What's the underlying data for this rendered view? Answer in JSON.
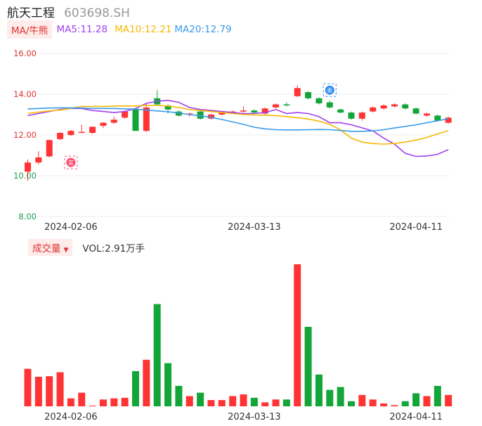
{
  "header": {
    "name": "航天工程",
    "code": "603698.SH"
  },
  "ma": {
    "tag": "MA/牛熊",
    "ma5": "MA5:11.28",
    "ma10": "MA10:12.21",
    "ma20": "MA20:12.79"
  },
  "volume": {
    "tag": "成交量",
    "value": "VOL:2.91万手"
  },
  "markers": {
    "buy": "买",
    "sell": "卖"
  },
  "colors": {
    "up": "#ff3333",
    "down": "#13a538",
    "ma5": "#a040f0",
    "ma10": "#f5b800",
    "ma20": "#3a9ae8"
  },
  "chart_data": {
    "type": "candlestick",
    "y_ticks": [
      "16.00",
      "14.00",
      "12.00",
      "10.00",
      "8.00"
    ],
    "ylim": [
      8,
      16
    ],
    "x_ticks": [
      {
        "label": "2024-02-06",
        "index": 4
      },
      {
        "label": "2024-03-13",
        "index": 21
      },
      {
        "label": "2024-04-11",
        "index": 36
      }
    ],
    "candles": [
      {
        "o": 10.2,
        "c": 10.65,
        "h": 10.8,
        "l": 9.75
      },
      {
        "o": 10.65,
        "c": 10.9,
        "h": 11.2,
        "l": 10.55
      },
      {
        "o": 10.95,
        "c": 11.75,
        "h": 11.78,
        "l": 10.9
      },
      {
        "o": 11.8,
        "c": 12.1,
        "h": 12.15,
        "l": 11.75
      },
      {
        "o": 12.0,
        "c": 12.2,
        "h": 12.25,
        "l": 11.95
      },
      {
        "o": 12.1,
        "c": 12.15,
        "h": 12.5,
        "l": 12.1
      },
      {
        "o": 12.1,
        "c": 12.4,
        "h": 12.42,
        "l": 12.05
      },
      {
        "o": 12.45,
        "c": 12.6,
        "h": 12.62,
        "l": 12.35
      },
      {
        "o": 12.6,
        "c": 12.75,
        "h": 12.9,
        "l": 12.55
      },
      {
        "o": 12.85,
        "c": 13.15,
        "h": 13.2,
        "l": 12.8
      },
      {
        "o": 13.25,
        "c": 12.2,
        "h": 13.3,
        "l": 12.2
      },
      {
        "o": 12.2,
        "c": 13.35,
        "h": 13.55,
        "l": 12.15
      },
      {
        "o": 13.8,
        "c": 13.5,
        "h": 14.2,
        "l": 13.45
      },
      {
        "o": 13.45,
        "c": 13.25,
        "h": 13.5,
        "l": 13.05
      },
      {
        "o": 13.15,
        "c": 12.95,
        "h": 13.2,
        "l": 12.9
      },
      {
        "o": 13.0,
        "c": 13.05,
        "h": 13.1,
        "l": 12.9
      },
      {
        "o": 13.15,
        "c": 12.8,
        "h": 13.2,
        "l": 12.75
      },
      {
        "o": 12.8,
        "c": 13.0,
        "h": 13.05,
        "l": 12.75
      },
      {
        "o": 13.0,
        "c": 13.1,
        "h": 13.15,
        "l": 12.95
      },
      {
        "o": 13.1,
        "c": 13.15,
        "h": 13.2,
        "l": 13.05
      },
      {
        "o": 13.15,
        "c": 13.2,
        "h": 13.4,
        "l": 13.1
      },
      {
        "o": 13.2,
        "c": 13.1,
        "h": 13.25,
        "l": 13.05
      },
      {
        "o": 13.05,
        "c": 13.3,
        "h": 13.35,
        "l": 13.0
      },
      {
        "o": 13.35,
        "c": 13.5,
        "h": 13.55,
        "l": 13.3
      },
      {
        "o": 13.5,
        "c": 13.45,
        "h": 13.6,
        "l": 13.4
      },
      {
        "o": 13.9,
        "c": 14.3,
        "h": 14.45,
        "l": 13.85
      },
      {
        "o": 14.1,
        "c": 13.8,
        "h": 14.15,
        "l": 13.75
      },
      {
        "o": 13.8,
        "c": 13.55,
        "h": 13.85,
        "l": 13.5
      },
      {
        "o": 13.6,
        "c": 13.35,
        "h": 13.7,
        "l": 13.3
      },
      {
        "o": 13.25,
        "c": 13.1,
        "h": 13.3,
        "l": 13.05
      },
      {
        "o": 13.1,
        "c": 12.8,
        "h": 13.15,
        "l": 12.75
      },
      {
        "o": 12.8,
        "c": 13.1,
        "h": 13.15,
        "l": 12.7
      },
      {
        "o": 13.15,
        "c": 13.35,
        "h": 13.4,
        "l": 13.1
      },
      {
        "o": 13.3,
        "c": 13.45,
        "h": 13.5,
        "l": 13.25
      },
      {
        "o": 13.4,
        "c": 13.5,
        "h": 13.55,
        "l": 13.35
      },
      {
        "o": 13.5,
        "c": 13.3,
        "h": 13.55,
        "l": 13.25
      },
      {
        "o": 13.3,
        "c": 13.05,
        "h": 13.35,
        "l": 13.0
      },
      {
        "o": 12.95,
        "c": 13.05,
        "h": 13.1,
        "l": 12.9
      },
      {
        "o": 12.95,
        "c": 12.7,
        "h": 13.0,
        "l": 12.65
      },
      {
        "o": 12.6,
        "c": 12.85,
        "h": 12.9,
        "l": 12.55
      }
    ],
    "ma5": [
      12.95,
      13.05,
      13.15,
      13.25,
      13.3,
      13.3,
      13.2,
      13.15,
      13.1,
      13.15,
      13.3,
      13.55,
      13.65,
      13.7,
      13.6,
      13.35,
      13.25,
      13.2,
      13.15,
      13.1,
      13.05,
      13.05,
      13.1,
      13.25,
      13.05,
      13.1,
      13.05,
      12.9,
      12.6,
      12.6,
      12.5,
      12.35,
      12.2,
      11.85,
      11.55,
      11.1,
      10.95,
      10.97,
      11.05,
      11.28
    ],
    "ma10": [
      13.05,
      13.12,
      13.18,
      13.22,
      13.3,
      13.4,
      13.4,
      13.4,
      13.42,
      13.42,
      13.42,
      13.45,
      13.45,
      13.42,
      13.35,
      13.25,
      13.2,
      13.15,
      13.1,
      13.05,
      13.0,
      12.98,
      12.97,
      12.95,
      12.9,
      12.85,
      12.78,
      12.68,
      12.52,
      12.25,
      11.85,
      11.65,
      11.58,
      11.55,
      11.58,
      11.65,
      11.75,
      11.88,
      12.05,
      12.21
    ],
    "ma20": [
      13.28,
      13.3,
      13.32,
      13.33,
      13.33,
      13.32,
      13.3,
      13.3,
      13.3,
      13.28,
      13.27,
      13.22,
      13.18,
      13.14,
      13.08,
      13.0,
      12.94,
      12.86,
      12.76,
      12.64,
      12.52,
      12.38,
      12.3,
      12.26,
      12.25,
      12.25,
      12.26,
      12.27,
      12.26,
      12.22,
      12.18,
      12.18,
      12.2,
      12.26,
      12.34,
      12.42,
      12.5,
      12.6,
      12.7,
      12.79
    ],
    "volume": [
      66,
      52,
      53,
      60,
      14,
      24,
      0,
      12,
      14,
      15,
      62,
      82,
      180,
      76,
      36,
      18,
      24,
      11,
      11,
      18,
      21,
      15,
      7,
      12,
      12,
      250,
      140,
      56,
      29,
      34,
      9,
      20,
      12,
      5,
      2,
      9,
      23,
      18,
      36,
      20
    ]
  }
}
